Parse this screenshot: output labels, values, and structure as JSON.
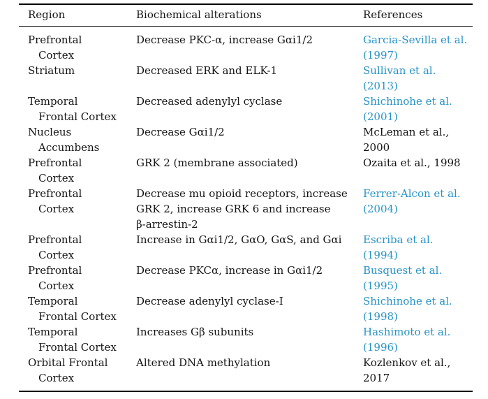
{
  "table": {
    "link_color": "#2793c8",
    "headers": {
      "region": "Region",
      "alterations": "Biochemical alterations",
      "references": "References"
    },
    "rows": [
      {
        "region": "Prefrontal\nCortex",
        "alteration": "Decrease PKC-α, increase Gαi1/2",
        "reference": "Garcia-Sevilla et al.\n(1997)",
        "reference_is_link": true
      },
      {
        "region": "Striatum",
        "alteration": "Decreased ERK and ELK-1",
        "reference": "Sullivan et al.\n(2013)",
        "reference_is_link": true
      },
      {
        "region": "Temporal\nFrontal Cortex",
        "alteration": "Decreased adenylyl cyclase",
        "reference": "Shichinohe et al.\n(2001)",
        "reference_is_link": true
      },
      {
        "region": "Nucleus\nAccumbens",
        "alteration": "Decrease Gαi1/2",
        "reference": "McLeman et al.,\n2000",
        "reference_is_link": false
      },
      {
        "region": "Prefrontal\nCortex",
        "alteration": "GRK 2 (membrane associated)",
        "reference": "Ozaita et al., 1998",
        "reference_is_link": false
      },
      {
        "region": "Prefrontal\nCortex",
        "alteration": "Decrease mu opioid receptors, increase\nGRK 2, increase GRK 6 and increase\nβ-arrestin-2",
        "reference": "Ferrer-Alcon et al.\n(2004)",
        "reference_is_link": true
      },
      {
        "region": "Prefrontal\nCortex",
        "alteration": "Increase in Gαi1/2, GαO, GαS, and Gαi",
        "reference": "Escriba et al.\n(1994)",
        "reference_is_link": true
      },
      {
        "region": "Prefrontal\nCortex",
        "alteration": "Decrease PKCα, increase in Gαi1/2",
        "reference": "Busquest et al.\n(1995)",
        "reference_is_link": true
      },
      {
        "region": "Temporal\nFrontal Cortex",
        "alteration": "Decrease adenylyl cyclase-I",
        "reference": "Shichinohe et al.\n(1998)",
        "reference_is_link": true
      },
      {
        "region": "Temporal\nFrontal Cortex",
        "alteration": "Increases Gβ subunits",
        "reference": "Hashimoto et al.\n(1996)",
        "reference_is_link": true
      },
      {
        "region": "Orbital Frontal\nCortex",
        "alteration": "Altered DNA methylation",
        "reference": "Kozlenkov et al.,\n2017",
        "reference_is_link": false
      }
    ]
  }
}
